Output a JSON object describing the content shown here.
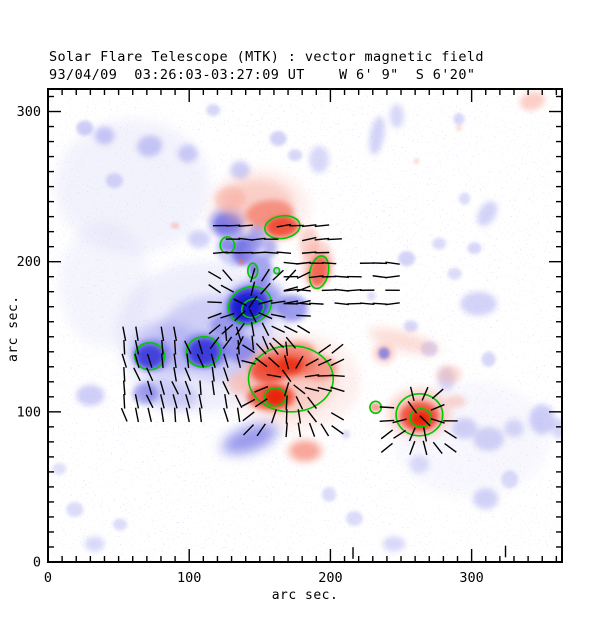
{
  "figure": {
    "title": "Solar Flare Telescope (MTK) : vector magnetic field",
    "subtitle": "93/04/09  03:26:03-03:27:09 UT    W 6' 9\"  S 6'20\"",
    "xlabel": "arc sec.",
    "ylabel": "arc sec."
  },
  "chart_data": {
    "type": "heatmap",
    "title": "Solar Flare Telescope (MTK) : vector magnetic field",
    "subtitle": "93/04/09  03:26:03-03:27:09 UT    W 6' 9\"  S 6'20\"",
    "xlabel": "arc sec.",
    "ylabel": "arc sec.",
    "x_range": [
      0,
      364
    ],
    "y_range": [
      0,
      315
    ],
    "x_ticks": [
      0,
      100,
      200,
      300
    ],
    "y_ticks": [
      0,
      100,
      200,
      300
    ],
    "minor_tick_interval": 10,
    "legend": {
      "positive_polarity": "red",
      "negative_polarity": "blue",
      "contour": "green = strong-field contour",
      "vectors": "black = transverse field"
    },
    "colors": {
      "n0": "#1717cf",
      "n1": "#2e2ed8",
      "n2": "#5d5de3",
      "n3": "#9e9eef",
      "n4": "#c9c9f6",
      "p0": "#e51f05",
      "p1": "#ee3a22",
      "p2": "#f3705c",
      "p3": "#f8a79a",
      "p4": "#fbd2cb",
      "contour": "#00c800",
      "vector": "#000000",
      "axis": "#000000"
    },
    "blobs": [
      [
        "n4",
        60,
        250,
        55,
        45,
        0,
        0.22
      ],
      [
        "n4",
        110,
        150,
        62,
        50,
        0,
        0.28
      ],
      [
        "n4",
        40,
        185,
        32,
        42,
        0,
        0.18
      ],
      [
        "n4",
        300,
        82,
        55,
        38,
        0,
        0.13
      ],
      [
        "p4",
        150,
        236,
        36,
        26,
        0,
        0.3
      ],
      [
        "p4",
        175,
        120,
        46,
        33,
        0,
        0.33
      ],
      [
        "n3",
        26,
        289,
        6,
        5,
        0,
        0.5
      ],
      [
        "n3",
        40,
        284,
        7,
        6,
        0,
        0.55
      ],
      [
        "n3",
        72,
        277,
        9,
        7,
        -10,
        0.55
      ],
      [
        "n3",
        99,
        272,
        7,
        6,
        0,
        0.5
      ],
      [
        "n3",
        117,
        301,
        5,
        4,
        0,
        0.4
      ],
      [
        "n3",
        163,
        282,
        6,
        5,
        0,
        0.45
      ],
      [
        "n3",
        136,
        261,
        7,
        6,
        0,
        0.5
      ],
      [
        "n3",
        47,
        254,
        6,
        5,
        0,
        0.4
      ],
      [
        "n3",
        175,
        271,
        5,
        4,
        0,
        0.4
      ],
      [
        "n3",
        192,
        268,
        7,
        9,
        0,
        0.4
      ],
      [
        "n3",
        127,
        226,
        14,
        11,
        0,
        0.5
      ],
      [
        "n2",
        127,
        225,
        10,
        8,
        0,
        0.7
      ],
      [
        "n3",
        134,
        209,
        15,
        12,
        0,
        0.5
      ],
      [
        "n2",
        138,
        207,
        8,
        9,
        0,
        0.75
      ],
      [
        "n3",
        107,
        215,
        8,
        6,
        0,
        0.45
      ],
      [
        "n2",
        148,
        217,
        6,
        9,
        0,
        0.5
      ],
      [
        "n2",
        157,
        209,
        5,
        7,
        0,
        0.45
      ],
      [
        "n3",
        118,
        149,
        40,
        28,
        0,
        0.4
      ],
      [
        "n3",
        83,
        142,
        26,
        18,
        0,
        0.45
      ],
      [
        "n2",
        115,
        139,
        13,
        9,
        0,
        0.55
      ],
      [
        "n2",
        136,
        142,
        11,
        9,
        0,
        0.55
      ],
      [
        "n2",
        127,
        157,
        12,
        9,
        0,
        0.45
      ],
      [
        "n2",
        173,
        169,
        11,
        9,
        0,
        0.6
      ],
      [
        "n2",
        146,
        173,
        21,
        14,
        -15,
        0.55
      ],
      [
        "n1",
        142,
        171,
        15,
        12,
        -20,
        0.75
      ],
      [
        "n0",
        141,
        170,
        11,
        9,
        -20,
        0.9
      ],
      [
        "n2",
        151,
        194,
        8,
        11,
        0,
        0.55
      ],
      [
        "n3",
        145,
        205,
        6,
        8,
        0,
        0.45
      ],
      [
        "n2",
        74,
        138,
        14,
        11,
        0,
        0.45
      ],
      [
        "n1",
        72,
        137,
        10,
        8,
        0,
        0.8
      ],
      [
        "n2",
        110,
        141,
        15,
        12,
        0,
        0.45
      ],
      [
        "n1",
        110,
        140,
        11,
        9,
        -10,
        0.8
      ],
      [
        "n3",
        86,
        112,
        21,
        10,
        10,
        0.45
      ],
      [
        "n2",
        69,
        112,
        9,
        7,
        0,
        0.5
      ],
      [
        "n3",
        30,
        111,
        10,
        7,
        0,
        0.5
      ],
      [
        "n3",
        143,
        82,
        24,
        11,
        -20,
        0.35
      ],
      [
        "n2",
        143,
        82,
        18,
        7,
        -20,
        0.5
      ],
      [
        "n2",
        127,
        211,
        5,
        4,
        0,
        0.55
      ],
      [
        "n2",
        145,
        195,
        3,
        4,
        0,
        0.55
      ],
      [
        "n2",
        162,
        194,
        2,
        2,
        0,
        0.45
      ],
      [
        "n3",
        233,
        284,
        5,
        13,
        10,
        0.45
      ],
      [
        "n3",
        247,
        297,
        5,
        8,
        0,
        0.4
      ],
      [
        "n3",
        291,
        295,
        4,
        4,
        0,
        0.4
      ],
      [
        "n3",
        311,
        232,
        6,
        9,
        30,
        0.45
      ],
      [
        "n3",
        295,
        242,
        4,
        4,
        0,
        0.35
      ],
      [
        "n3",
        302,
        209,
        5,
        4,
        0,
        0.4
      ],
      [
        "n3",
        277,
        212,
        5,
        4,
        0,
        0.35
      ],
      [
        "n3",
        254,
        202,
        6,
        5,
        0,
        0.45
      ],
      [
        "n3",
        288,
        192,
        5,
        4,
        0,
        0.35
      ],
      [
        "n3",
        305,
        172,
        13,
        8,
        0,
        0.45
      ],
      [
        "n3",
        270,
        142,
        6,
        5,
        0,
        0.4
      ],
      [
        "n3",
        312,
        135,
        5,
        5,
        0,
        0.4
      ],
      [
        "p3",
        238,
        139,
        8,
        7,
        0,
        0.45
      ],
      [
        "n2",
        238,
        139,
        4,
        4,
        0,
        0.65
      ],
      [
        "n3",
        257,
        157,
        5,
        4,
        0,
        0.4
      ],
      [
        "n3",
        229,
        177,
        3,
        3,
        0,
        0.35
      ],
      [
        "n3",
        384,
        300,
        5,
        8,
        0,
        0.35
      ],
      [
        "n3",
        387,
        165,
        4,
        10,
        0,
        0.35
      ],
      [
        "n3",
        282,
        122,
        6,
        8,
        0,
        0.4
      ],
      [
        "n3",
        295,
        89,
        9,
        7,
        0,
        0.45
      ],
      [
        "n3",
        312,
        82,
        11,
        8,
        0,
        0.45
      ],
      [
        "n3",
        330,
        89,
        7,
        6,
        0,
        0.4
      ],
      [
        "n3",
        350,
        95,
        9,
        10,
        0,
        0.5
      ],
      [
        "n3",
        362,
        89,
        6,
        7,
        0,
        0.4
      ],
      [
        "n3",
        310,
        42,
        9,
        7,
        0,
        0.45
      ],
      [
        "n3",
        327,
        55,
        6,
        6,
        0,
        0.35
      ],
      [
        "n3",
        245,
        12,
        8,
        5,
        0,
        0.4
      ],
      [
        "n3",
        263,
        65,
        7,
        6,
        0,
        0.35
      ],
      [
        "n3",
        211,
        85,
        3,
        3,
        0,
        0.35
      ],
      [
        "n3",
        217,
        29,
        6,
        5,
        0,
        0.35
      ],
      [
        "n3",
        199,
        45,
        5,
        5,
        0,
        0.35
      ],
      [
        "n3",
        19,
        35,
        6,
        5,
        0,
        0.35
      ],
      [
        "n3",
        33,
        12,
        7,
        5,
        0,
        0.4
      ],
      [
        "n3",
        51,
        25,
        5,
        4,
        0,
        0.35
      ],
      [
        "n3",
        8,
        62,
        5,
        4,
        0,
        0.3
      ],
      [
        "p3",
        148,
        239,
        26,
        16,
        0,
        0.45
      ],
      [
        "p3",
        129,
        242,
        11,
        8,
        0,
        0.5
      ],
      [
        "p2",
        157,
        232,
        17,
        9,
        -5,
        0.65
      ],
      [
        "p1",
        166,
        223,
        12,
        7,
        -8,
        0.85
      ],
      [
        "p3",
        185,
        212,
        7,
        11,
        0,
        0.5
      ],
      [
        "p3",
        191,
        198,
        11,
        16,
        10,
        0.45
      ],
      [
        "p1",
        192,
        194,
        7,
        11,
        10,
        0.7
      ],
      [
        "p2",
        137,
        200,
        2,
        2,
        0,
        0.65
      ],
      [
        "p3",
        90,
        224,
        3,
        2,
        0,
        0.55
      ],
      [
        "p3",
        343,
        307,
        9,
        6,
        -15,
        0.55
      ],
      [
        "p3",
        291,
        289,
        2,
        2,
        0,
        0.45
      ],
      [
        "p3",
        261,
        267,
        2,
        2,
        0,
        0.45
      ],
      [
        "p3",
        171,
        122,
        33,
        24,
        0,
        0.45
      ],
      [
        "p1",
        168,
        132,
        21,
        9,
        0,
        0.7
      ],
      [
        "p1",
        156,
        127,
        13,
        8,
        0,
        0.75
      ],
      [
        "p0",
        172,
        131,
        9,
        6,
        0,
        0.65
      ],
      [
        "p1",
        158,
        110,
        17,
        9,
        0,
        0.75
      ],
      [
        "p0",
        161,
        110,
        8,
        6,
        0,
        0.85
      ],
      [
        "p2",
        192,
        129,
        13,
        8,
        0,
        0.55
      ],
      [
        "p2",
        178,
        141,
        11,
        6,
        0,
        0.55
      ],
      [
        "p3",
        136,
        119,
        9,
        7,
        0,
        0.45
      ],
      [
        "p3",
        252,
        147,
        26,
        6,
        15,
        0.4
      ],
      [
        "p3",
        284,
        125,
        9,
        6,
        0,
        0.4
      ],
      [
        "p3",
        263,
        99,
        22,
        16,
        0,
        0.55
      ],
      [
        "p1",
        263,
        97,
        14,
        10,
        0,
        0.8
      ],
      [
        "p0",
        264,
        95,
        7,
        5,
        0,
        0.9
      ],
      [
        "p3",
        289,
        107,
        7,
        4,
        0,
        0.45
      ],
      [
        "p2",
        232,
        103,
        4,
        3,
        0,
        0.65
      ],
      [
        "p3",
        182,
        74,
        14,
        9,
        0,
        0.35
      ],
      [
        "p2",
        182,
        74,
        10,
        6,
        0,
        0.5
      ]
    ],
    "contours": [
      [
        166,
        223,
        12.5,
        7.5,
        -8
      ],
      [
        127,
        211,
        5,
        5.5,
        0
      ],
      [
        145,
        194,
        3.5,
        5,
        0
      ],
      [
        162,
        194,
        2,
        2,
        0
      ],
      [
        192,
        193,
        6.5,
        11,
        12
      ],
      [
        143,
        171,
        15.5,
        12,
        -22
      ],
      [
        145,
        169,
        8,
        6,
        -22
      ],
      [
        72,
        137,
        10.5,
        9,
        0
      ],
      [
        110,
        140,
        12,
        10,
        -12
      ],
      [
        172,
        122,
        30,
        22,
        0
      ],
      [
        161,
        110,
        7.5,
        6,
        0
      ],
      [
        263,
        98,
        16.5,
        14,
        0
      ],
      [
        264,
        96,
        7.5,
        6,
        0
      ],
      [
        232,
        103,
        4,
        4,
        0
      ]
    ],
    "vector_patches": [
      {
        "x0": 122,
        "x1": 204,
        "y0": 206,
        "y1": 232,
        "step": 9,
        "mode": "uniform",
        "angle": 3,
        "jitter": 10,
        "len": 10
      },
      {
        "x0": 172,
        "x1": 250,
        "y0": 172,
        "y1": 200,
        "step": 9,
        "mode": "uniform",
        "angle": 0,
        "jitter": 8,
        "len": 10
      },
      {
        "x0": 118,
        "x1": 184,
        "y0": 146,
        "y1": 198,
        "step": 9,
        "mode": "radial",
        "cx": 143,
        "cy": 170,
        "jitter": 12,
        "len": 10
      },
      {
        "x0": 54,
        "x1": 140,
        "y0": 98,
        "y1": 152,
        "step": 9,
        "mode": "uniform",
        "angle": 105,
        "jitter": 12,
        "len": 10
      },
      {
        "x0": 142,
        "x1": 210,
        "y0": 88,
        "y1": 146,
        "step": 9,
        "mode": "radial",
        "cx": 171,
        "cy": 121,
        "jitter": 10,
        "len": 10
      },
      {
        "x0": 240,
        "x1": 288,
        "y0": 76,
        "y1": 120,
        "step": 9,
        "mode": "radial",
        "cx": 263,
        "cy": 98,
        "jitter": 10,
        "len": 10
      }
    ],
    "stray_vectors": [
      {
        "x": 216,
        "y": 6,
        "angle": 90
      },
      {
        "x": 324,
        "y": 7,
        "angle": 90
      }
    ]
  }
}
